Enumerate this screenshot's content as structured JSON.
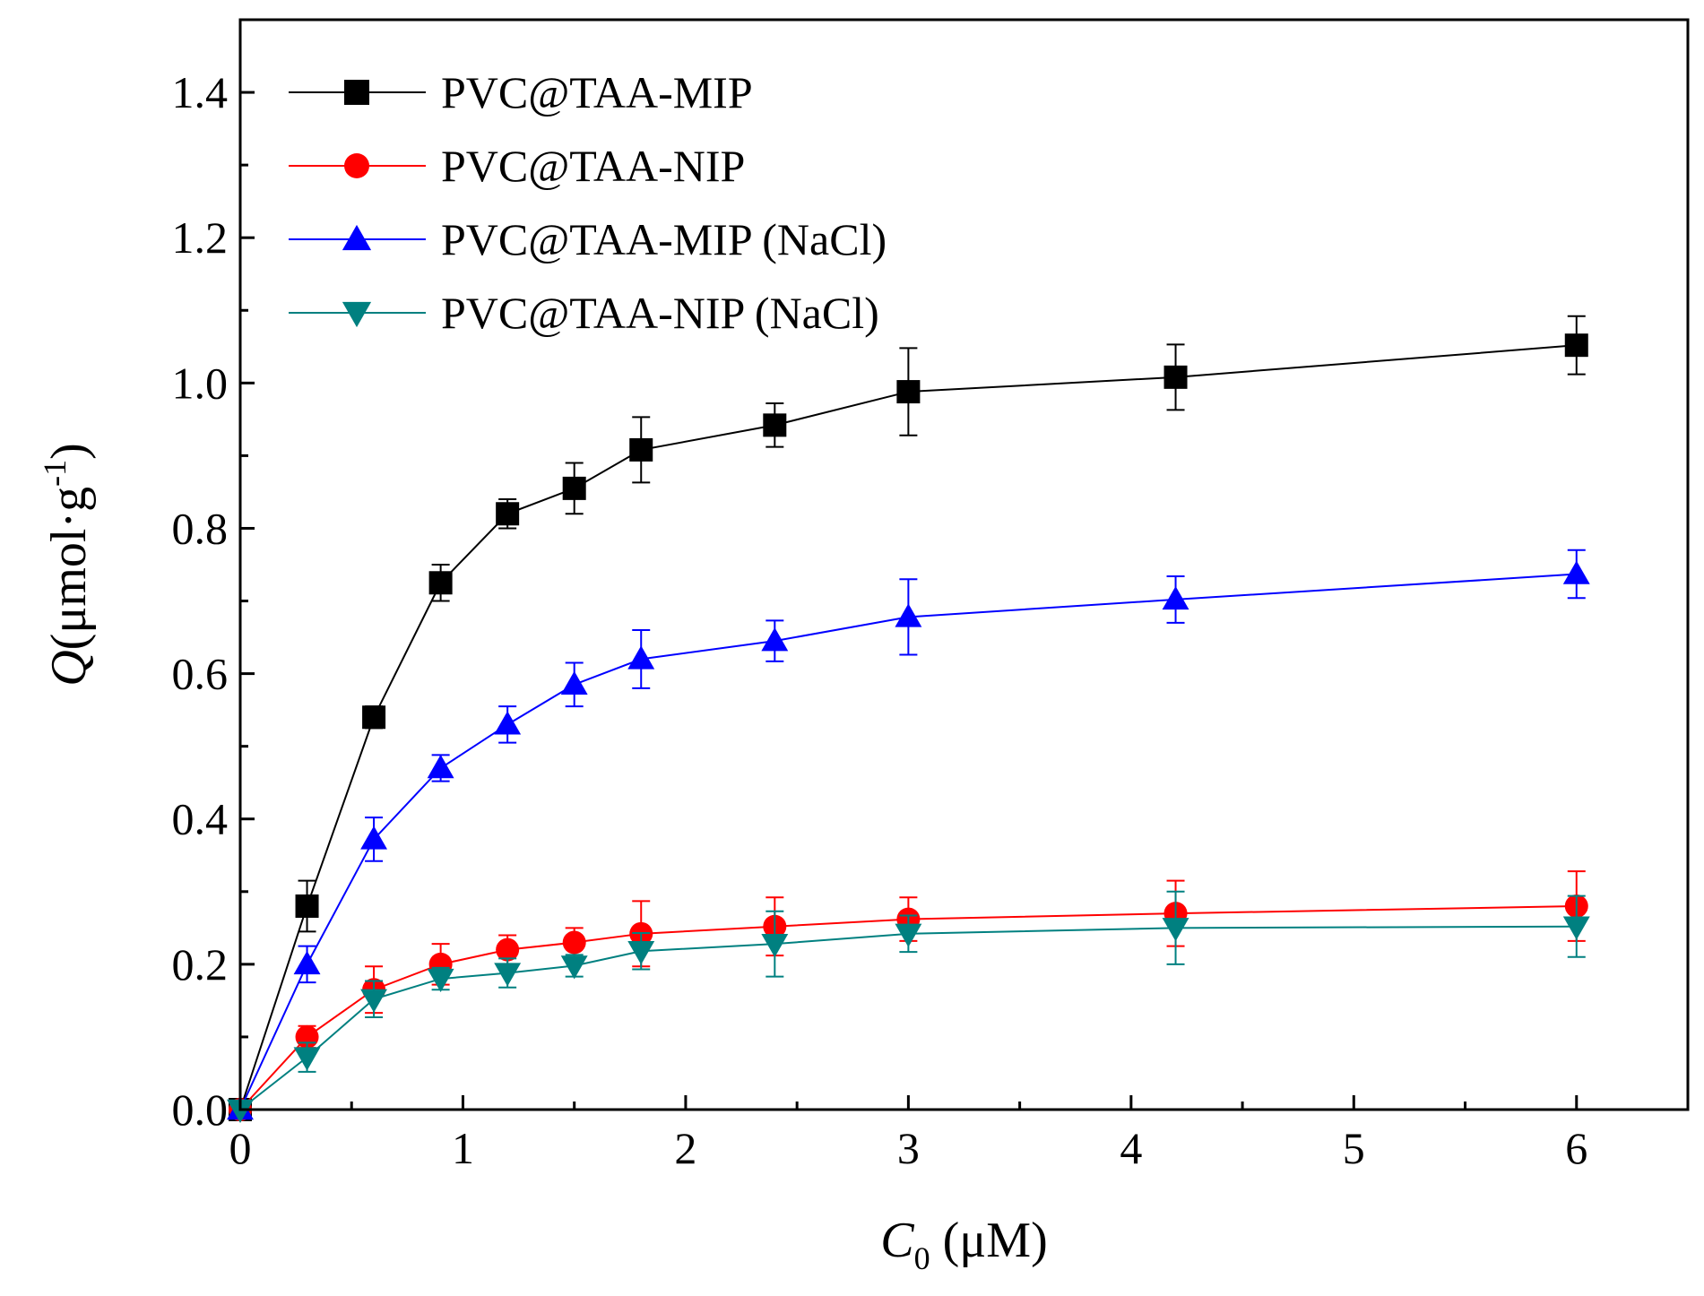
{
  "chart_data": {
    "type": "line",
    "title": "",
    "xlabel": {
      "var": "C",
      "sub": "0",
      "unit": " (μM)"
    },
    "ylabel": {
      "var": "Q",
      "unit": "(μmol·g",
      "sup": "-1",
      "close": ")"
    },
    "xlim": [
      0,
      6.5
    ],
    "ylim": [
      0,
      1.5
    ],
    "xticks": [
      "0",
      "1",
      "2",
      "3",
      "4",
      "5",
      "6"
    ],
    "xtick_values": [
      0,
      1,
      2,
      3,
      4,
      5,
      6
    ],
    "yticks": [
      "0.0",
      "0.2",
      "0.4",
      "0.6",
      "0.8",
      "1.0",
      "1.2",
      "1.4"
    ],
    "ytick_values": [
      0,
      0.2,
      0.4,
      0.6,
      0.8,
      1.0,
      1.2,
      1.4
    ],
    "x_minor_step": 0.5,
    "y_minor_step": 0.1,
    "grid": false,
    "legend_position": "top-left",
    "series": [
      {
        "name": "PVC@TAA-MIP",
        "color": "#000000",
        "marker": "square",
        "x": [
          0,
          0.3,
          0.6,
          0.9,
          1.2,
          1.5,
          1.8,
          2.4,
          3.0,
          4.2,
          6.0
        ],
        "values": [
          0,
          0.28,
          0.54,
          0.725,
          0.82,
          0.855,
          0.908,
          0.942,
          0.988,
          1.008,
          1.052
        ],
        "errors": [
          0,
          0.035,
          0.015,
          0.025,
          0.02,
          0.035,
          0.045,
          0.03,
          0.06,
          0.045,
          0.04
        ]
      },
      {
        "name": "PVC@TAA-NIP",
        "color": "#ff0000",
        "marker": "circle",
        "x": [
          0,
          0.3,
          0.6,
          0.9,
          1.2,
          1.5,
          1.8,
          2.4,
          3.0,
          4.2,
          6.0
        ],
        "values": [
          0,
          0.1,
          0.165,
          0.2,
          0.22,
          0.23,
          0.242,
          0.252,
          0.262,
          0.27,
          0.28
        ],
        "errors": [
          0,
          0.015,
          0.032,
          0.028,
          0.02,
          0.02,
          0.045,
          0.04,
          0.03,
          0.045,
          0.048
        ]
      },
      {
        "name": "PVC@TAA-MIP (NaCl)",
        "color": "#0000ff",
        "marker": "triangle-up",
        "x": [
          0,
          0.3,
          0.6,
          0.9,
          1.2,
          1.5,
          1.8,
          2.4,
          3.0,
          4.2,
          6.0
        ],
        "values": [
          0,
          0.2,
          0.372,
          0.47,
          0.53,
          0.585,
          0.62,
          0.645,
          0.678,
          0.702,
          0.737
        ],
        "errors": [
          0,
          0.025,
          0.03,
          0.018,
          0.025,
          0.03,
          0.04,
          0.028,
          0.052,
          0.032,
          0.033
        ]
      },
      {
        "name": "PVC@TAA-NIP (NaCl)",
        "color": "#008080",
        "marker": "triangle-down",
        "x": [
          0,
          0.3,
          0.6,
          0.9,
          1.2,
          1.5,
          1.8,
          2.4,
          3.0,
          4.2,
          6.0
        ],
        "values": [
          0,
          0.072,
          0.152,
          0.18,
          0.188,
          0.198,
          0.218,
          0.228,
          0.242,
          0.25,
          0.252
        ],
        "errors": [
          0,
          0.02,
          0.025,
          0.015,
          0.02,
          0.015,
          0.025,
          0.045,
          0.025,
          0.05,
          0.042
        ]
      }
    ]
  }
}
